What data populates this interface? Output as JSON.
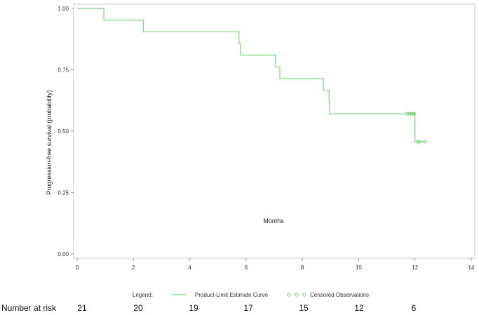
{
  "chart_data": {
    "type": "line",
    "subtype": "kaplan-meier-step",
    "xlabel": "Months",
    "ylabel": "Progression-free survival (probability)",
    "xlim": [
      0,
      14
    ],
    "ylim": [
      0,
      1
    ],
    "x_ticks": [
      "0",
      "2",
      "4",
      "6",
      "8",
      "10",
      "12",
      "14"
    ],
    "y_ticks": [
      "0.00",
      "0.25",
      "0.50",
      "0.75",
      "1.00"
    ],
    "grid": false,
    "series": [
      {
        "name": "Product-Limit Estimate Curve",
        "color": "#7ccf7c",
        "step_points": [
          [
            0,
            1.0
          ],
          [
            0.95,
            1.0
          ],
          [
            0.95,
            0.952
          ],
          [
            2.35,
            0.952
          ],
          [
            2.35,
            0.905
          ],
          [
            5.75,
            0.905
          ],
          [
            5.75,
            0.857
          ],
          [
            5.8,
            0.857
          ],
          [
            5.8,
            0.81
          ],
          [
            7.05,
            0.81
          ],
          [
            7.05,
            0.762
          ],
          [
            7.2,
            0.762
          ],
          [
            7.2,
            0.714
          ],
          [
            8.75,
            0.714
          ],
          [
            8.75,
            0.667
          ],
          [
            8.95,
            0.667
          ],
          [
            8.95,
            0.619
          ],
          [
            8.97,
            0.619
          ],
          [
            8.97,
            0.571
          ],
          [
            12.0,
            0.571
          ],
          [
            12.0,
            0.457
          ],
          [
            12.4,
            0.457
          ]
        ]
      }
    ],
    "censored": {
      "name": "Censored Observations",
      "color": "#7ccf7c",
      "points": [
        [
          11.72,
          0.571
        ],
        [
          11.8,
          0.571
        ],
        [
          11.87,
          0.571
        ],
        [
          11.93,
          0.571
        ],
        [
          11.97,
          0.571
        ],
        [
          12.1,
          0.457
        ],
        [
          12.18,
          0.457
        ],
        [
          12.35,
          0.457
        ]
      ]
    },
    "legend": {
      "title": "Legend:",
      "placement": "bottom",
      "items": [
        "Product-Limit Estimate Curve",
        "Censored Observations"
      ]
    },
    "risk_table": {
      "label": "Number at risk",
      "values": [
        "21",
        "20",
        "19",
        "17",
        "15",
        "12",
        "6"
      ]
    }
  }
}
